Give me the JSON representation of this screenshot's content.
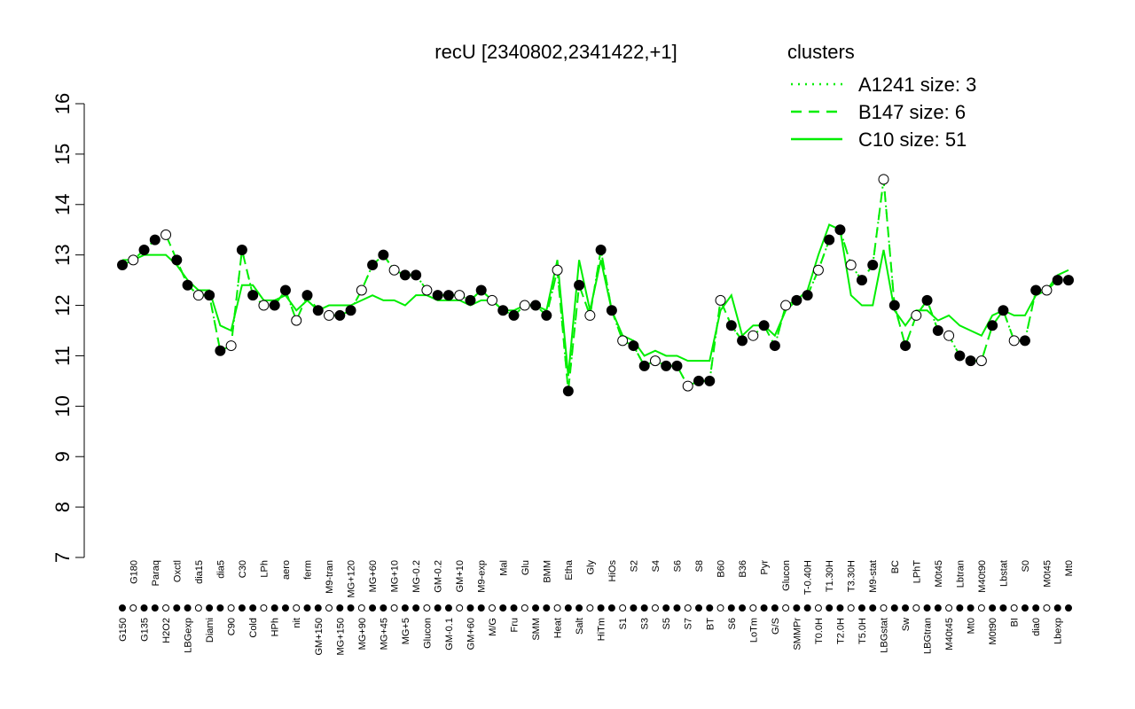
{
  "chart_data": {
    "type": "line",
    "title": "recU [2340802,2341422,+1]",
    "legend_title": "clusters",
    "legend_color": "#00ee00",
    "categories": [
      "G150",
      "G180",
      "G135",
      "Paraq",
      "H2O2",
      "Oxctl",
      "LBGexp",
      "dia15",
      "Diami",
      "dia5",
      "C90",
      "C30",
      "Cold",
      "LPh",
      "HPh",
      "aero",
      "nit",
      "ferm",
      "GM+150",
      "M9-tran",
      "MG+150",
      "MG+120",
      "MG+90",
      "MG+60",
      "MG+45",
      "MG+10",
      "MG+5",
      "MG-0.2",
      "Glucon",
      "GM-0.2",
      "GM-0.1",
      "GM+10",
      "GM+60",
      "M9-exp",
      "M/G",
      "Mal",
      "Fru",
      "Glu",
      "SMM",
      "BMM",
      "Heat",
      "Etha",
      "Salt",
      "Gly",
      "HiTm",
      "HiOs",
      "S1",
      "S2",
      "S3",
      "S4",
      "S5",
      "S6",
      "S7",
      "S8",
      "BT",
      "B60",
      "S6",
      "B36",
      "LoTm",
      "Pyr",
      "G/S",
      "Glucon",
      "SMMPr",
      "T-0.40H",
      "T0.0H",
      "T1.30H",
      "T2.0H",
      "T3.30H",
      "T5.0H",
      "M9-stat",
      "LBGstat",
      "BC",
      "Sw",
      "LPhT",
      "LBGtran",
      "M0t45",
      "M40t45",
      "Lbtran",
      "Mt0",
      "M40t90",
      "M0t90",
      "Lbstat",
      "BI",
      "S0",
      "dia0",
      "M0t45",
      "Lbexp",
      "Mt0"
    ],
    "values": [
      12.8,
      12.9,
      13.1,
      13.3,
      13.4,
      12.9,
      12.4,
      12.2,
      12.2,
      11.1,
      11.2,
      13.1,
      12.2,
      12.0,
      12.0,
      12.3,
      11.7,
      12.2,
      11.9,
      11.8,
      11.8,
      11.9,
      12.3,
      12.8,
      13.0,
      12.7,
      12.6,
      12.6,
      12.3,
      12.2,
      12.2,
      12.2,
      12.1,
      12.3,
      12.1,
      11.9,
      11.8,
      12.0,
      12.0,
      11.8,
      12.7,
      10.3,
      12.4,
      11.8,
      13.1,
      11.9,
      11.3,
      11.2,
      10.8,
      10.9,
      10.8,
      10.8,
      10.4,
      10.5,
      10.5,
      12.1,
      11.6,
      11.3,
      11.4,
      11.6,
      11.2,
      12.0,
      12.1,
      12.2,
      12.7,
      13.3,
      13.5,
      12.8,
      12.5,
      12.8,
      14.5,
      12.0,
      11.2,
      11.8,
      12.1,
      11.5,
      11.4,
      11.0,
      10.9,
      10.9,
      11.6,
      11.9,
      11.3,
      11.3,
      12.3,
      12.3,
      12.5,
      12.5
    ],
    "series": [
      {
        "name": "A1241 size: 3",
        "color": "#00ee00",
        "dash": "dotted",
        "values": [
          12.8,
          12.9,
          13.1,
          13.3,
          13.4,
          12.9,
          12.4,
          12.2,
          12.2,
          11.1,
          11.2,
          13.1,
          12.2,
          12.0,
          12.0,
          12.3,
          11.7,
          12.2,
          11.9,
          11.8,
          11.8,
          11.9,
          12.3,
          12.8,
          13.0,
          12.7,
          12.6,
          12.6,
          12.3,
          12.2,
          12.2,
          12.2,
          12.1,
          12.3,
          12.1,
          11.9,
          11.8,
          12.0,
          12.0,
          11.8,
          12.7,
          10.3,
          12.4,
          11.8,
          13.1,
          11.9,
          11.3,
          11.2,
          10.8,
          10.9,
          10.8,
          10.8,
          10.4,
          10.5,
          10.5,
          12.1,
          11.6,
          11.3,
          11.4,
          11.6,
          11.2,
          12.0,
          12.1,
          12.2,
          12.7,
          13.3,
          13.5,
          12.8,
          12.5,
          12.8,
          14.5,
          12.0,
          11.2,
          11.8,
          12.1,
          11.5,
          11.4,
          11.0,
          10.9,
          10.9,
          11.6,
          11.9,
          11.3,
          11.3,
          12.3,
          12.3,
          12.5,
          12.5
        ]
      },
      {
        "name": "B147 size: 6",
        "color": "#00ee00",
        "dash": "dashed",
        "values": [
          12.8,
          12.9,
          13.1,
          13.3,
          13.4,
          12.9,
          12.4,
          12.2,
          12.2,
          11.1,
          11.2,
          13.1,
          12.2,
          12.0,
          12.0,
          12.3,
          11.7,
          12.2,
          11.9,
          11.8,
          11.8,
          11.9,
          12.3,
          12.8,
          13.0,
          12.7,
          12.6,
          12.6,
          12.3,
          12.2,
          12.2,
          12.2,
          12.1,
          12.3,
          12.1,
          11.9,
          11.8,
          12.0,
          12.0,
          11.8,
          12.7,
          10.3,
          12.4,
          11.8,
          13.1,
          11.9,
          11.3,
          11.2,
          10.8,
          10.9,
          10.8,
          10.8,
          10.4,
          10.5,
          10.5,
          12.1,
          11.6,
          11.3,
          11.4,
          11.6,
          11.2,
          12.0,
          12.1,
          12.2,
          12.7,
          13.3,
          13.5,
          12.8,
          12.5,
          12.8,
          14.5,
          12.0,
          11.2,
          11.8,
          12.1,
          11.5,
          11.4,
          11.0,
          10.9,
          10.9,
          11.6,
          11.9,
          11.3,
          11.3,
          12.3,
          12.3,
          12.5,
          12.5
        ]
      },
      {
        "name": "C10 size: 51",
        "color": "#00ee00",
        "dash": "solid",
        "values": [
          12.9,
          12.9,
          13.0,
          13.0,
          13.0,
          12.8,
          12.5,
          12.3,
          12.3,
          11.6,
          11.5,
          12.4,
          12.4,
          12.1,
          12.1,
          12.2,
          11.9,
          12.1,
          11.9,
          12.0,
          12.0,
          12.0,
          12.1,
          12.2,
          12.1,
          12.1,
          12.0,
          12.2,
          12.2,
          12.1,
          12.1,
          12.1,
          12.0,
          12.1,
          12.1,
          11.9,
          11.9,
          12.0,
          12.0,
          11.9,
          12.9,
          10.6,
          12.9,
          11.9,
          12.9,
          11.9,
          11.4,
          11.3,
          11.0,
          11.1,
          11.0,
          11.0,
          10.9,
          10.9,
          10.9,
          11.9,
          12.2,
          11.4,
          11.6,
          11.6,
          11.4,
          11.9,
          12.1,
          12.3,
          13.0,
          13.6,
          13.5,
          12.2,
          12.0,
          12.0,
          13.1,
          11.9,
          11.6,
          11.9,
          11.9,
          11.7,
          11.8,
          11.6,
          11.5,
          11.4,
          11.8,
          11.9,
          11.8,
          11.8,
          12.2,
          12.3,
          12.6,
          12.7
        ]
      }
    ],
    "ylim": [
      7,
      16
    ],
    "yticks": [
      7,
      8,
      9,
      10,
      11,
      12,
      13,
      14,
      15,
      16
    ]
  }
}
